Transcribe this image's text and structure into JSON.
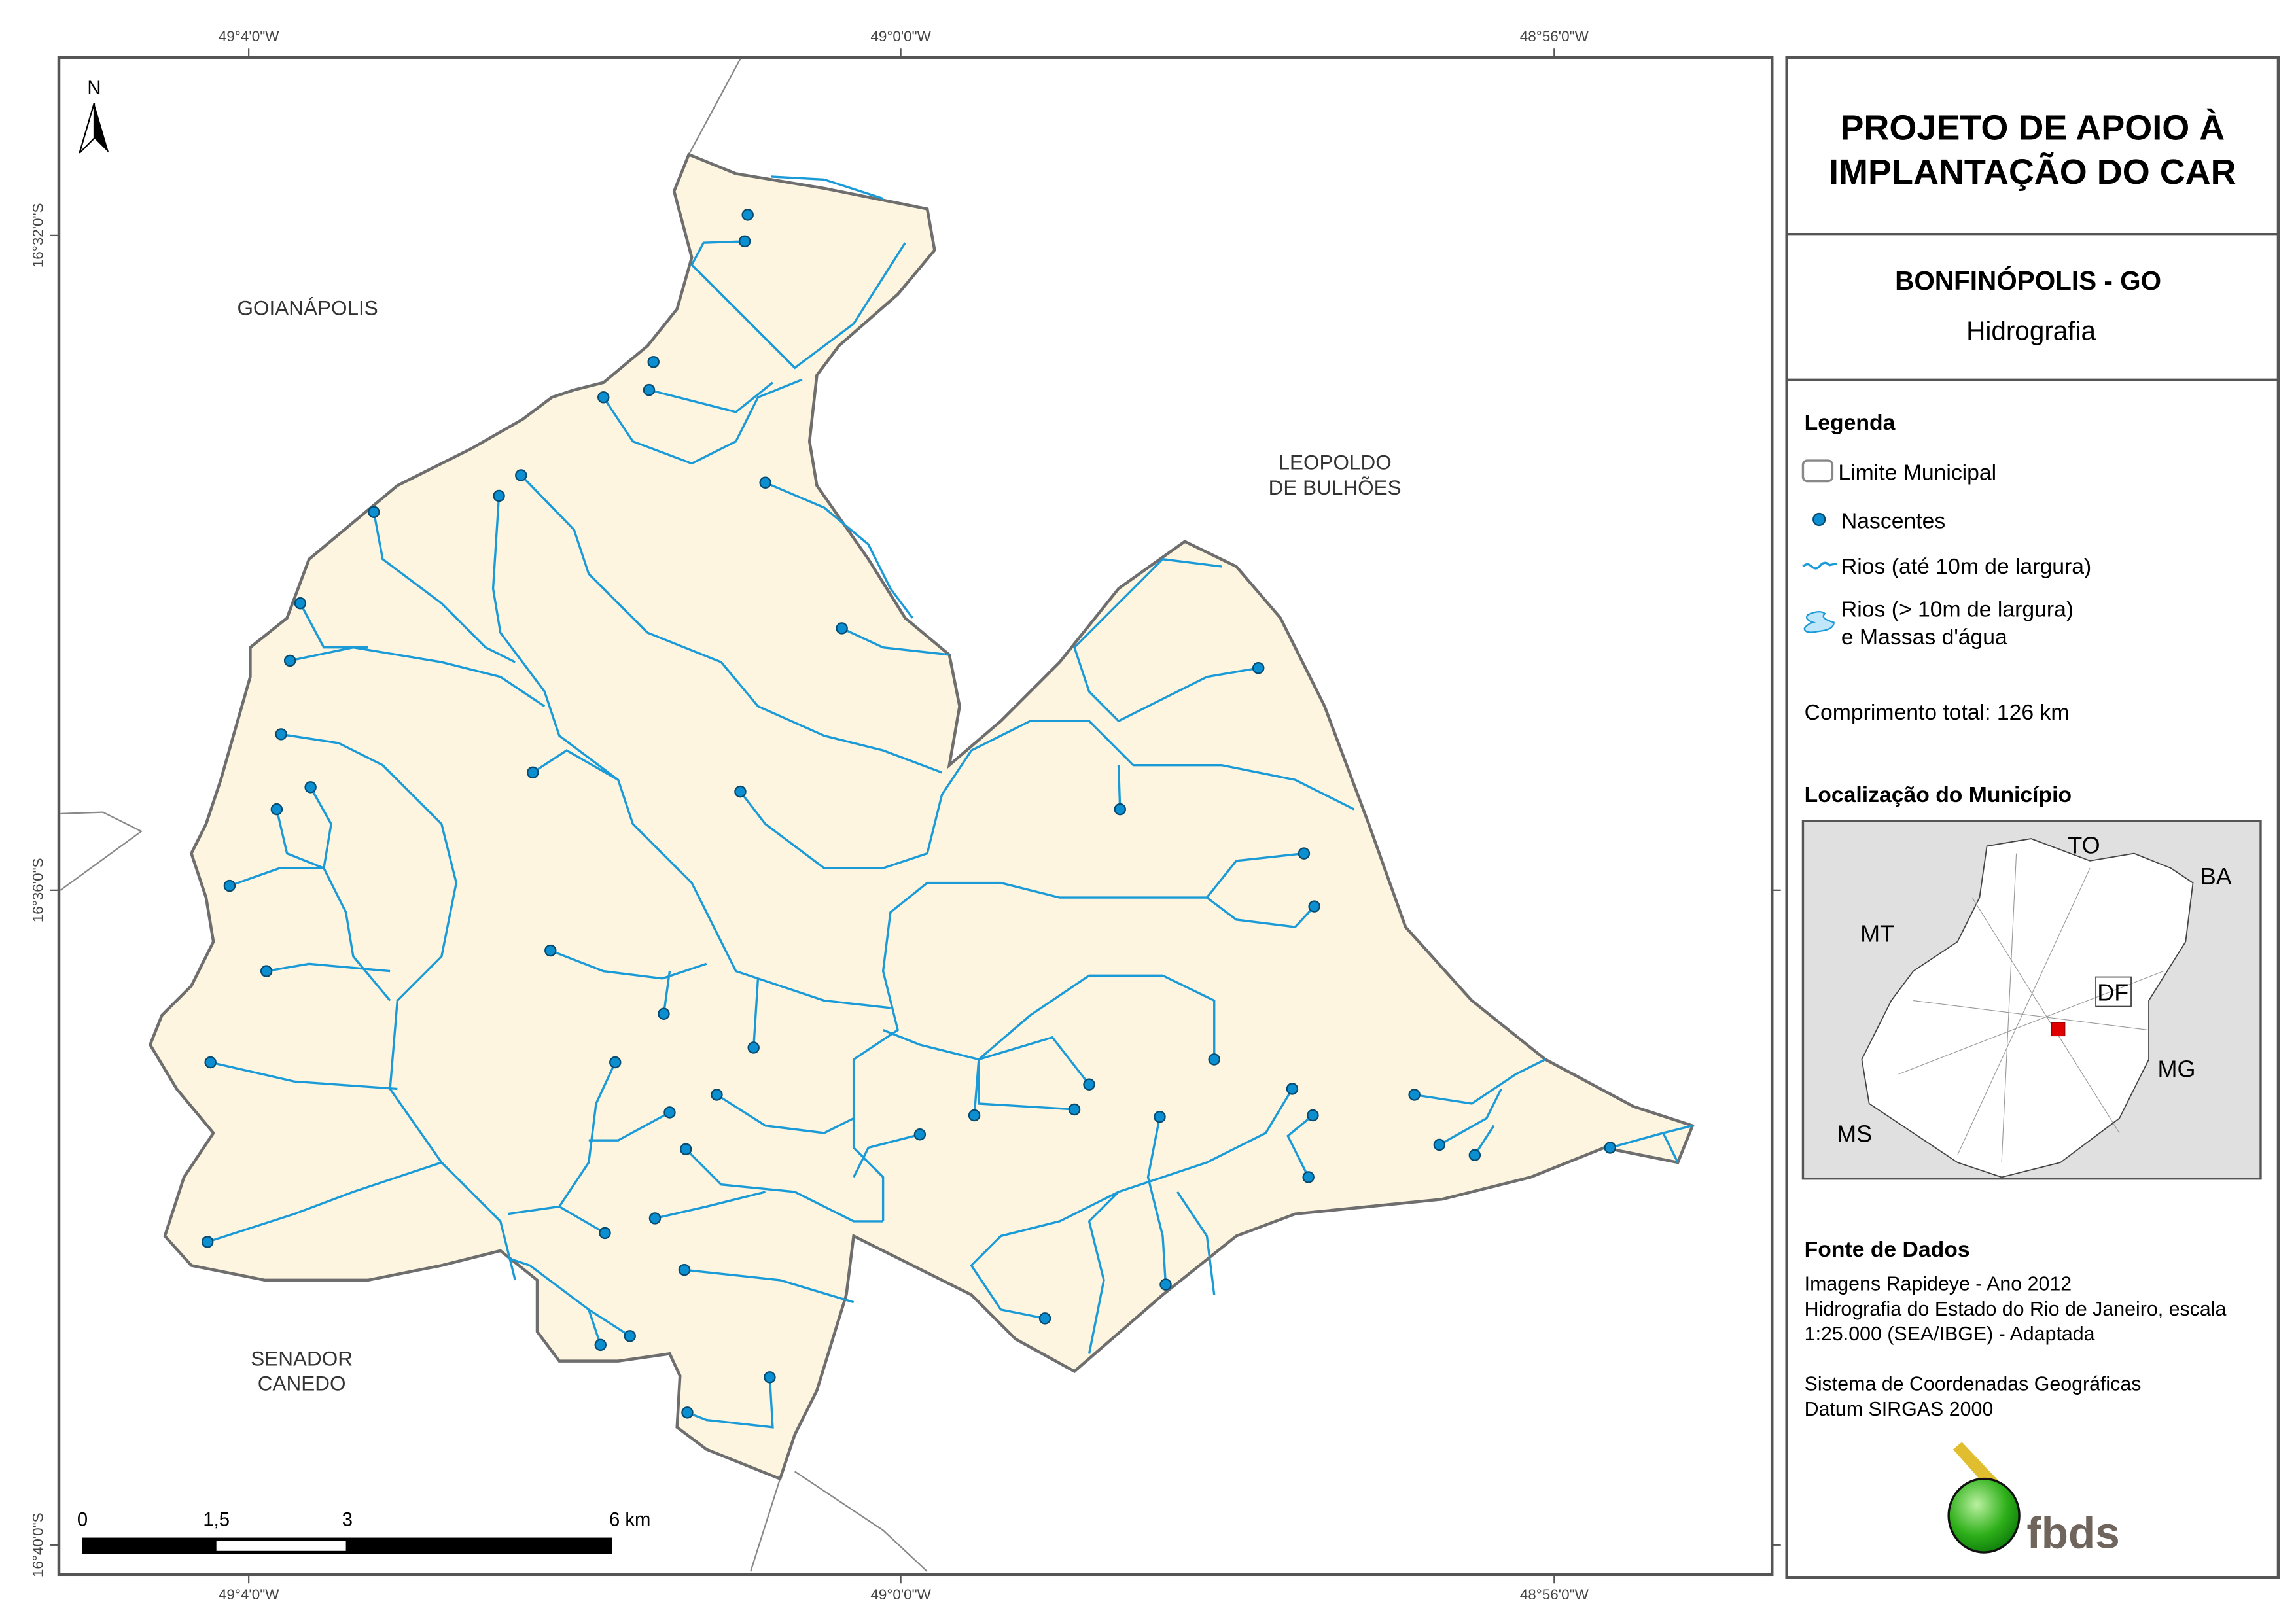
{
  "map": {
    "north_arrow": "N",
    "coords_top": [
      "49°4'0\"W",
      "49°0'0\"W",
      "48°56'0\"W"
    ],
    "coords_bottom": [
      "49°4'0\"W",
      "49°0'0\"W",
      "48°56'0\"W"
    ],
    "coords_left": [
      "16°32'0\"S",
      "16°36'0\"S",
      "16°40'0\"S"
    ],
    "neighbors": {
      "goianapolis": "GOIANÁPOLIS",
      "leopoldo_1": "LEOPOLDO",
      "leopoldo_2": "DE BULHÕES",
      "senador_1": "SENADOR",
      "senador_2": "CANEDO"
    },
    "scale_bar": {
      "ticks": [
        "0",
        "1,5",
        "3",
        "6 km"
      ]
    },
    "colors": {
      "municipality_fill": "#fdf5e0",
      "river": "#1a9bd7",
      "spring": "#0b8fd1",
      "boundary": "#6e6e6e"
    }
  },
  "panel": {
    "title_1": "PROJETO DE APOIO À",
    "title_2": "IMPLANTAÇÃO DO CAR",
    "municipality": "BONFINÓPOLIS - GO",
    "theme": "Hidrografia",
    "legend": {
      "heading": "Legenda",
      "items": [
        "Limite Municipal",
        "Nascentes",
        "Rios (até 10m de largura)",
        "Rios (> 10m de largura)",
        "e Massas d'água"
      ],
      "total_length": "Comprimento total:  126 km"
    },
    "location": {
      "heading": "Localização do Município",
      "labels": [
        "TO",
        "BA",
        "MT",
        "DF",
        "MG",
        "MS"
      ],
      "highlight_color": "#e00000"
    },
    "sources": {
      "heading": "Fonte de Dados",
      "lines": [
        "Imagens Rapideye - Ano 2012",
        "Hidrografia do Estado do Rio de Janeiro, escala",
        "1:25.000 (SEA/IBGE) - Adaptada",
        "Sistema de Coordenadas Geográficas",
        "Datum SIRGAS 2000"
      ]
    },
    "logo_text": "fbds"
  }
}
